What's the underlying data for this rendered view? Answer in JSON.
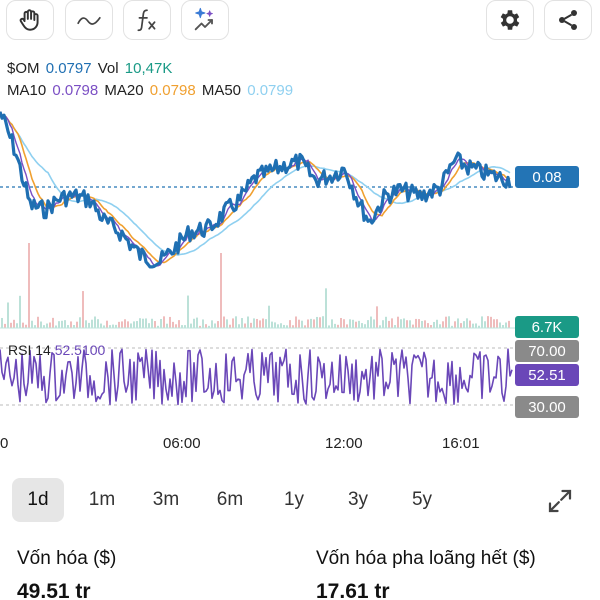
{
  "toolbar": {
    "icons": [
      "hand-icon",
      "line-tool-icon",
      "function-icon",
      "ai-sparkle-icon",
      "gear-icon",
      "share-icon"
    ]
  },
  "legend": {
    "symbol": "$OM",
    "price": "0.0797",
    "vol_label": "Vol",
    "vol_value": "10,47K",
    "ma10_label": "MA10",
    "ma10_value": "0.0798",
    "ma20_label": "MA20",
    "ma20_value": "0.0798",
    "ma50_label": "MA50",
    "ma50_value": "0.0799"
  },
  "chart_data": {
    "type": "line",
    "series": [
      {
        "name": "$OM",
        "color": "#1f6fb2"
      },
      {
        "name": "MA10",
        "color": "#7b4fc4"
      },
      {
        "name": "MA20",
        "color": "#f0a030"
      },
      {
        "name": "MA50",
        "color": "#8fd0f0"
      }
    ],
    "current_price": "0.08",
    "volume_tag": "6.7K",
    "rsi": {
      "label": "RSI 14",
      "value": "52.5100",
      "tag": "52.51",
      "upper": "70.00",
      "lower": "30.00"
    },
    "x_ticks": [
      "0",
      "06:00",
      "12:00",
      "16:01"
    ]
  },
  "colors": {
    "price_line": "#1f6fb2",
    "price_tag": "#2374b5",
    "volume_tag": "#1a9a86",
    "rsi_tag": "#6a47b8",
    "band_tag": "#8a8a8a"
  },
  "ranges": {
    "items": [
      "1d",
      "1m",
      "3m",
      "6m",
      "1y",
      "3y",
      "5y"
    ],
    "selected": "1d"
  },
  "stats": {
    "market_cap_label": "Vốn hóa ($)",
    "market_cap_value": "49.51 tr",
    "fdv_label": "Vốn hóa pha loãng hết ($)",
    "fdv_value": "17.61 tr"
  }
}
